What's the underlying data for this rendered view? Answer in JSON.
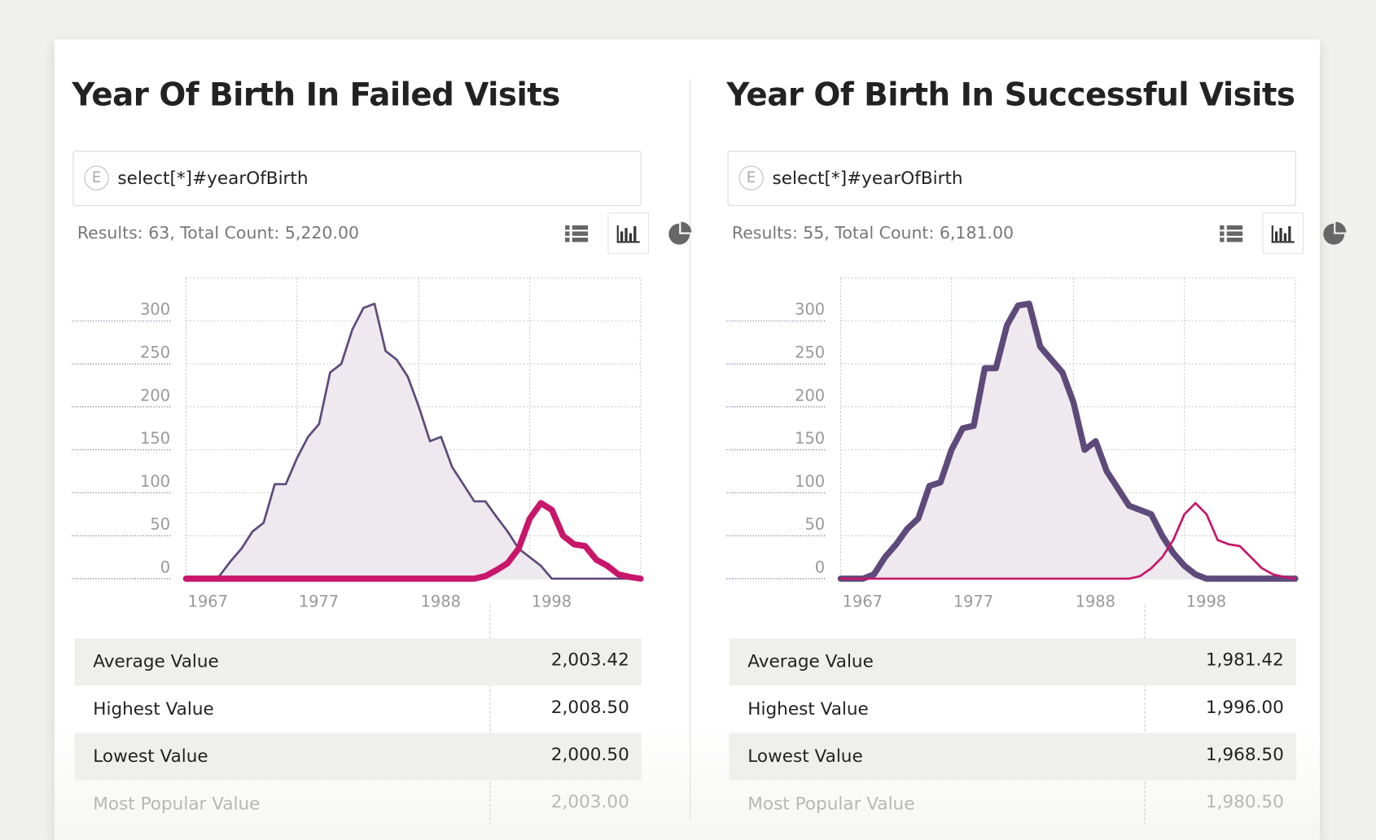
{
  "panels": [
    {
      "title": "Year Of Birth In Failed Visits",
      "query_icon": "E",
      "query": "select[*]#yearOfBirth",
      "results": "Results: 63, Total Count: 5,220.00",
      "stats": [
        {
          "label": "Average Value",
          "value": "2,003.42"
        },
        {
          "label": "Highest Value",
          "value": "2,008.50"
        },
        {
          "label": "Lowest Value",
          "value": "2,000.50"
        },
        {
          "label": "Most Popular Value",
          "value": "2,003.00"
        }
      ]
    },
    {
      "title": "Year Of Birth In Successful Visits",
      "query_icon": "E",
      "query": "select[*]#yearOfBirth",
      "results": "Results: 55, Total Count: 6,181.00",
      "stats": [
        {
          "label": "Average Value",
          "value": "1,981.42"
        },
        {
          "label": "Highest Value",
          "value": "1,996.00"
        },
        {
          "label": "Lowest Value",
          "value": "1,968.50"
        },
        {
          "label": "Most Popular Value",
          "value": "1,980.50"
        }
      ]
    }
  ],
  "chart_data": [
    {
      "type": "line",
      "x": [
        1967,
        1968,
        1969,
        1970,
        1971,
        1972,
        1973,
        1974,
        1975,
        1976,
        1977,
        1978,
        1979,
        1980,
        1981,
        1982,
        1983,
        1984,
        1985,
        1986,
        1987,
        1988,
        1989,
        1990,
        1991,
        1992,
        1993,
        1994,
        1995,
        1996,
        1997,
        1998,
        1999,
        2000,
        2001,
        2002,
        2003,
        2004,
        2005,
        2006,
        2007,
        2008
      ],
      "xlim": [
        1967,
        2008
      ],
      "xticks": [
        1967,
        1977,
        1988,
        1998
      ],
      "ylim": [
        0,
        350
      ],
      "yticks": [
        0,
        50,
        100,
        150,
        200,
        250,
        300
      ],
      "grid": true,
      "series": [
        {
          "color": "#5e4a7a",
          "line_style": "light",
          "area_color": "#ede9ee",
          "values": [
            0,
            0,
            0,
            3,
            20,
            35,
            55,
            65,
            110,
            110,
            140,
            165,
            180,
            240,
            250,
            290,
            315,
            320,
            265,
            255,
            235,
            200,
            160,
            165,
            130,
            110,
            90,
            90,
            72,
            55,
            35,
            25,
            15,
            0,
            0,
            0,
            0,
            0,
            0,
            0,
            0,
            0
          ]
        },
        {
          "color": "#c8166a",
          "line_style": "heavy",
          "values": [
            0,
            0,
            0,
            0,
            0,
            0,
            0,
            0,
            0,
            0,
            0,
            0,
            0,
            0,
            0,
            0,
            0,
            0,
            0,
            0,
            0,
            0,
            0,
            0,
            0,
            0,
            0,
            3,
            10,
            18,
            35,
            70,
            88,
            80,
            50,
            40,
            38,
            22,
            15,
            5,
            2,
            0
          ]
        }
      ]
    },
    {
      "type": "line",
      "x": [
        1967,
        1968,
        1969,
        1970,
        1971,
        1972,
        1973,
        1974,
        1975,
        1976,
        1977,
        1978,
        1979,
        1980,
        1981,
        1982,
        1983,
        1984,
        1985,
        1986,
        1987,
        1988,
        1989,
        1990,
        1991,
        1992,
        1993,
        1994,
        1995,
        1996,
        1997,
        1998,
        1999,
        2000,
        2001,
        2002,
        2003,
        2004,
        2005,
        2006,
        2007,
        2008
      ],
      "xlim": [
        1967,
        2008
      ],
      "xticks": [
        1967,
        1977,
        1988,
        1998
      ],
      "ylim": [
        0,
        350
      ],
      "yticks": [
        0,
        50,
        100,
        150,
        200,
        250,
        300
      ],
      "grid": true,
      "series": [
        {
          "color": "#5e4a7a",
          "line_style": "heavy",
          "area_color": "#ede9ee",
          "values": [
            0,
            0,
            0,
            5,
            25,
            40,
            58,
            70,
            108,
            112,
            150,
            175,
            178,
            245,
            245,
            295,
            318,
            320,
            270,
            255,
            240,
            205,
            150,
            160,
            125,
            105,
            85,
            80,
            75,
            50,
            30,
            15,
            5,
            0,
            0,
            0,
            0,
            0,
            0,
            0,
            0,
            0
          ]
        },
        {
          "color": "#c8166a",
          "line_style": "light",
          "values": [
            0,
            0,
            0,
            0,
            0,
            0,
            0,
            0,
            0,
            0,
            0,
            0,
            0,
            0,
            0,
            0,
            0,
            0,
            0,
            0,
            0,
            0,
            0,
            0,
            0,
            0,
            0,
            3,
            12,
            25,
            45,
            75,
            88,
            75,
            45,
            40,
            38,
            25,
            12,
            5,
            2,
            0
          ]
        }
      ]
    }
  ]
}
